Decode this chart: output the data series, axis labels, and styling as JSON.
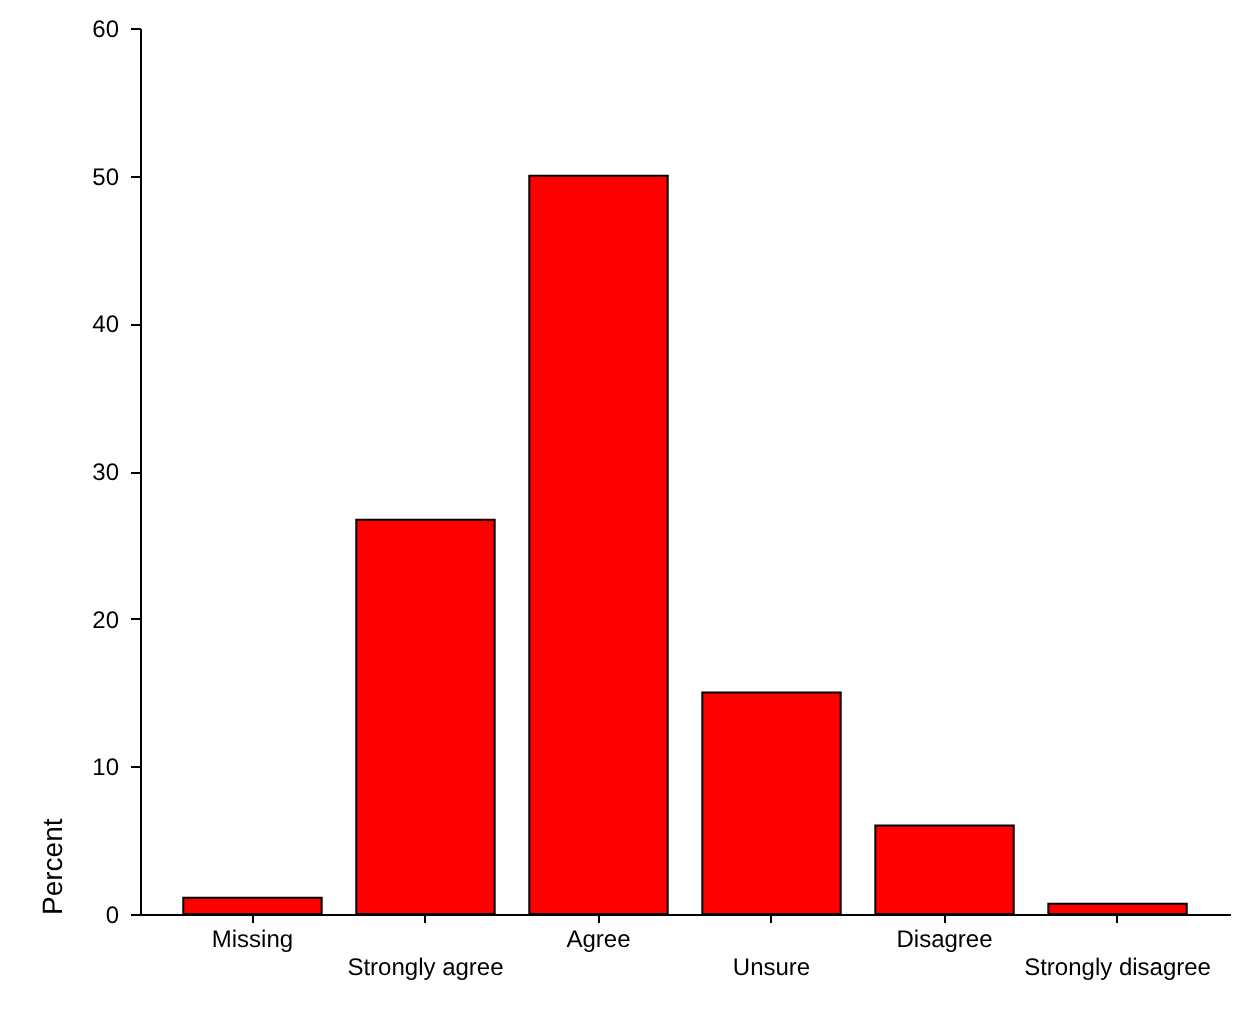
{
  "chart_data": {
    "type": "bar",
    "categories": [
      "Missing",
      "Strongly agree",
      "Agree",
      "Unsure",
      "Disagree",
      "Strongly disagree"
    ],
    "values": [
      1.1,
      26.7,
      50.0,
      15.0,
      6.0,
      0.7
    ],
    "color": "#ff0000",
    "ylabel": "Percent",
    "ylim": [
      0,
      60
    ],
    "yticks": [
      0,
      10,
      20,
      30,
      40,
      50,
      60
    ],
    "grid": false
  }
}
